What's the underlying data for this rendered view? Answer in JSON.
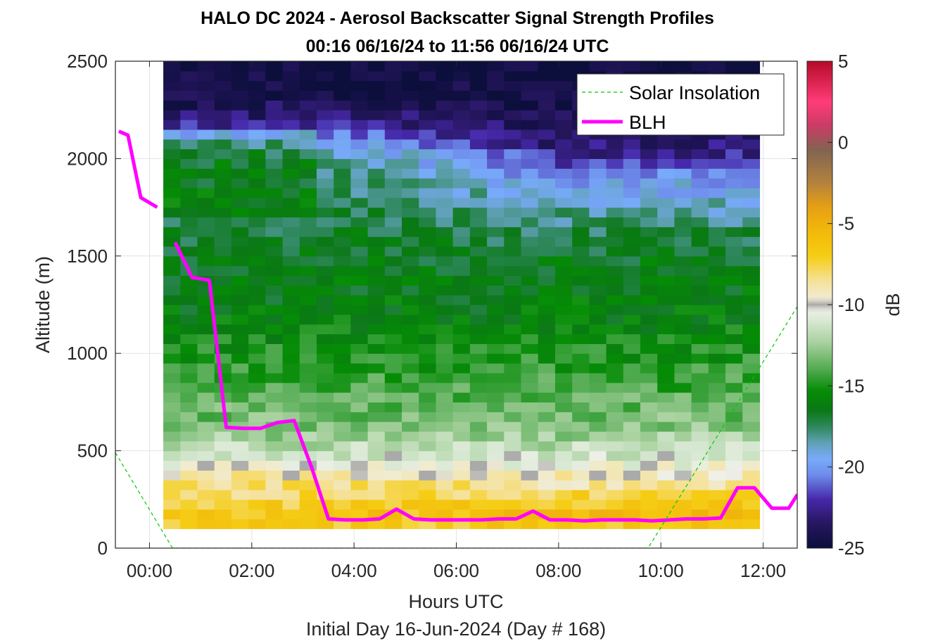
{
  "chart_data": {
    "type": "heatmap",
    "title": "HALO DC 2024 - Aerosol Backscatter Signal Strength Profiles",
    "subtitle": "00:16 06/16/24 to 11:56 06/16/24  UTC",
    "xlabel": "Hours UTC",
    "xlabel2": "Initial Day 16-Jun-2024 (Day # 168)",
    "ylabel": "Altitude (m)",
    "colorbar_label": "dB",
    "xlim": [
      -0.6667,
      12.6667
    ],
    "ylim": [
      0,
      2500
    ],
    "x_ticks": [
      {
        "value": 0,
        "label": "00:00"
      },
      {
        "value": 2,
        "label": "02:00"
      },
      {
        "value": 4,
        "label": "04:00"
      },
      {
        "value": 6,
        "label": "06:00"
      },
      {
        "value": 8,
        "label": "08:00"
      },
      {
        "value": 10,
        "label": "10:00"
      },
      {
        "value": 12,
        "label": "12:00"
      }
    ],
    "y_ticks": [
      {
        "value": 0,
        "label": "0"
      },
      {
        "value": 500,
        "label": "500"
      },
      {
        "value": 1000,
        "label": "1000"
      },
      {
        "value": 1500,
        "label": "1500"
      },
      {
        "value": 2000,
        "label": "2000"
      },
      {
        "value": 2500,
        "label": "2500"
      }
    ],
    "colorbar_range": [
      -25,
      5
    ],
    "colorbar_ticks": [
      {
        "value": 5,
        "label": "5"
      },
      {
        "value": 0,
        "label": "0"
      },
      {
        "value": -5,
        "label": "-5"
      },
      {
        "value": -10,
        "label": "-10"
      },
      {
        "value": -15,
        "label": "-15"
      },
      {
        "value": -20,
        "label": "-20"
      },
      {
        "value": -25,
        "label": "-25"
      }
    ],
    "grid": true,
    "legend_placement": "top-right",
    "legend": [
      {
        "name": "Solar Insolation",
        "color": "#00cc00",
        "style": "dashed"
      },
      {
        "name": "BLH",
        "color": "#ff00ff",
        "style": "solid"
      }
    ],
    "heatmap": {
      "x_start": 0.27,
      "x_end": 11.93,
      "columns": 35,
      "alt_bottom": 100,
      "alt_top": 2500,
      "bin_height": 50,
      "description_nodes_db": {
        "altitudes": [
          100,
          175,
          250,
          340,
          420,
          500,
          620,
          800,
          1000,
          1200,
          1500,
          1700,
          1800,
          1900,
          2000,
          2100,
          2200,
          2350,
          2500
        ],
        "values_night": [
          -7,
          -6.5,
          -7.5,
          -8.5,
          -10,
          -11.5,
          -13,
          -14,
          -15,
          -16,
          -16.5,
          -17,
          -17.5,
          -18,
          -18,
          -20,
          -23,
          -24.5,
          -25
        ],
        "values_day": [
          -7,
          -6,
          -7,
          -9,
          -10,
          -11.5,
          -13,
          -14,
          -15,
          -16,
          -16.5,
          -18,
          -19,
          -20,
          -22,
          -23.5,
          -24,
          -24.5,
          -25
        ]
      }
    },
    "series": [
      {
        "name": "BLH",
        "x": [
          -0.6,
          -0.42,
          -0.17,
          0.15
        ],
        "y": [
          2140,
          2120,
          1800,
          1750
        ]
      },
      {
        "name": "BLH",
        "x": [
          0.5,
          0.83,
          1.17,
          1.5,
          1.83,
          2.17,
          2.5,
          2.83,
          3.17,
          3.5,
          3.83,
          4.17,
          4.5,
          4.83,
          5.17,
          5.5,
          5.83,
          6.17,
          6.5,
          6.83,
          7.17,
          7.5,
          7.83,
          8.17,
          8.5,
          8.83,
          9.17,
          9.5,
          9.83,
          10.17,
          10.5,
          10.83,
          11.17,
          11.5,
          11.83,
          12.17,
          12.5,
          12.67
        ],
        "y": [
          1570,
          1390,
          1375,
          620,
          615,
          615,
          645,
          655,
          415,
          150,
          145,
          145,
          150,
          200,
          150,
          145,
          145,
          145,
          145,
          150,
          150,
          190,
          145,
          145,
          140,
          145,
          145,
          145,
          140,
          145,
          150,
          150,
          155,
          310,
          310,
          205,
          205,
          275
        ]
      },
      {
        "name": "Solar Insolation",
        "x": [
          -0.6667,
          0.45,
          9.75,
          12.6667
        ],
        "y": [
          490,
          0,
          0,
          1240
        ]
      }
    ]
  }
}
